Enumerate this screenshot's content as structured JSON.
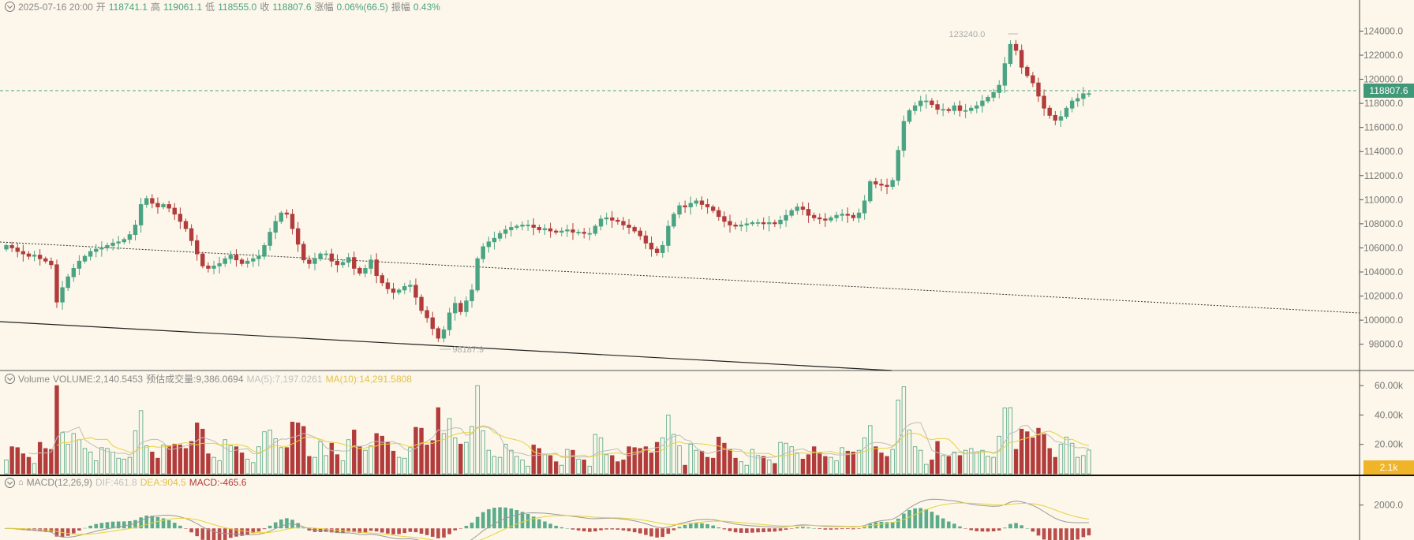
{
  "header": {
    "datetime": "2025-07-16 20:00",
    "open_label": "开",
    "open": "118741.1",
    "high_label": "高",
    "high": "119061.1",
    "low_label": "低",
    "low": "118555.0",
    "close_label": "收",
    "close": "118807.6",
    "change_label": "涨幅",
    "change": "0.06%(66.5)",
    "amp_label": "振幅",
    "amp": "0.43%"
  },
  "volume_header": {
    "name": "Volume",
    "volume": "VOLUME:2,140.5453",
    "estimate": "预估成交量:9,386.0694",
    "ma5": "MA(5):7,197.0261",
    "ma10": "MA(10):14,291.5808"
  },
  "macd_header": {
    "name": "MACD(12,26,9)",
    "dif": "DIF:461.8",
    "dea": "DEA:904.5",
    "macd": "MACD:-465.6"
  },
  "last_price_label": "118807.6",
  "volume_last_label": "2.1k",
  "colors": {
    "up": "#4aa382",
    "down": "#b23b3b",
    "bg": "#fcf7ea",
    "ma5": "#bdbdbd",
    "ma10": "#e8d23a"
  },
  "chart_data": [
    {
      "type": "candlestick",
      "y_ticks": [
        "124000.0",
        "122000.0",
        "120000.0",
        "118000.0",
        "116000.0",
        "114000.0",
        "112000.0",
        "110000.0",
        "108000.0",
        "106000.0",
        "104000.0",
        "102000.0",
        "100000.0",
        "98000.0"
      ],
      "ylim": [
        96800,
        125600
      ],
      "max_annotation": "123240.0",
      "min_annotation": "98187.9",
      "last_price": 118807.6,
      "closes": [
        106200,
        106000,
        105700,
        105500,
        105300,
        105400,
        105100,
        104900,
        104600,
        101500,
        102700,
        103600,
        104300,
        104900,
        105300,
        105700,
        105900,
        106000,
        106200,
        106400,
        106500,
        106700,
        107100,
        107900,
        109600,
        110100,
        109700,
        109400,
        109600,
        109300,
        108800,
        108200,
        107600,
        106600,
        105500,
        104500,
        104300,
        104500,
        104700,
        105100,
        105400,
        105000,
        104700,
        104900,
        105100,
        105300,
        106200,
        107300,
        108200,
        108900,
        108800,
        107600,
        106300,
        105000,
        104700,
        105100,
        105500,
        105500,
        104900,
        104600,
        104800,
        105200,
        104300,
        103900,
        104300,
        105000,
        103700,
        103100,
        102600,
        102300,
        102500,
        102800,
        102900,
        101900,
        100800,
        100200,
        99300,
        98500,
        99200,
        100600,
        101400,
        100700,
        101600,
        102500,
        105100,
        106100,
        106500,
        106800,
        107200,
        107500,
        107700,
        107800,
        107900,
        107900,
        107700,
        107500,
        107600,
        107400,
        107300,
        107400,
        107500,
        107300,
        107300,
        107200,
        107200,
        107800,
        108400,
        108500,
        108300,
        108200,
        107900,
        107700,
        107400,
        107000,
        106400,
        105900,
        105600,
        106200,
        107800,
        108800,
        109500,
        109400,
        109700,
        109900,
        109600,
        109400,
        109100,
        108600,
        108200,
        107900,
        107800,
        107900,
        108000,
        108100,
        108100,
        108000,
        108100,
        108000,
        108300,
        108700,
        109100,
        109400,
        109200,
        108700,
        108500,
        108400,
        108300,
        108500,
        108700,
        108800,
        108700,
        108500,
        108900,
        109900,
        111500,
        111300,
        111200,
        111100,
        111600,
        114100,
        116500,
        117400,
        117800,
        118200,
        118200,
        117900,
        117500,
        117500,
        117400,
        117800,
        117400,
        117400,
        117600,
        117800,
        118200,
        118500,
        118900,
        119500,
        121300,
        122900,
        122400,
        121000,
        120300,
        119700,
        118600,
        117600,
        117000,
        116600,
        116900,
        117600,
        118200,
        118400,
        118800,
        118808
      ],
      "volume_ticks": [
        "60.00k",
        "40.00k",
        "20.00k"
      ],
      "volume_ylim": [
        0,
        66000
      ],
      "volume_peak": 60000,
      "macd_ticks": [
        "2000.0"
      ],
      "macd_ylim": [
        -1000,
        3400
      ]
    }
  ]
}
